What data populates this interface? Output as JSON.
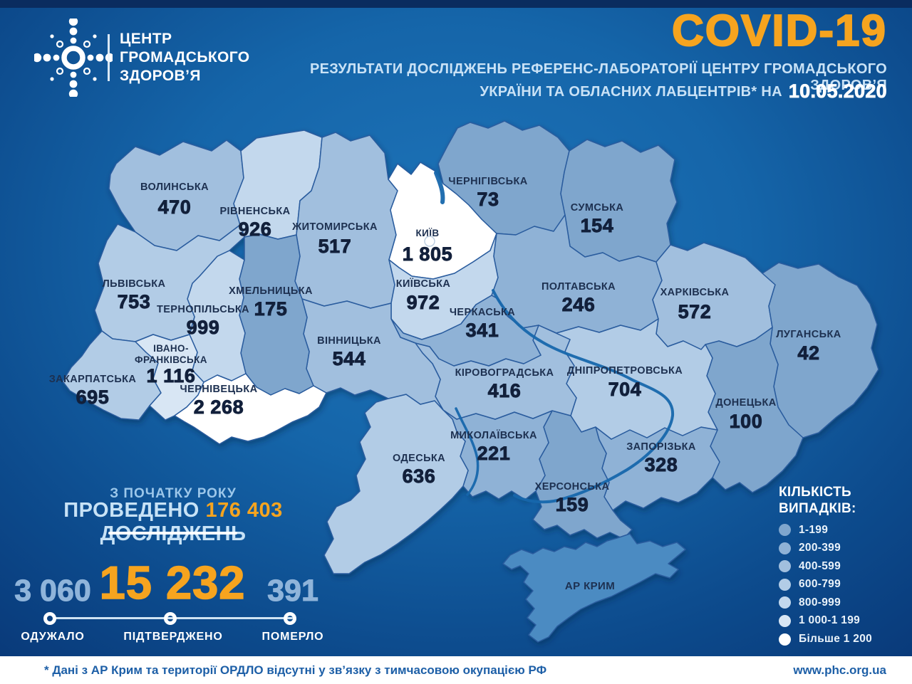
{
  "header": {
    "logo_lines": [
      "ЦЕНТР",
      "ГРОМАДСЬКОГО",
      "ЗДОРОВ’Я"
    ],
    "title": "COVID-19",
    "subtitle_line1": "РЕЗУЛЬТАТИ ДОСЛІДЖЕНЬ РЕФЕРЕНС-ЛАБОРАТОРІЇ ЦЕНТРУ ГРОМАДСЬКОГО ЗДОРОВ’Я",
    "subtitle_line2": "УКРАЇНИ ТА ОБЛАСНИХ ЛАБЦЕНТРІВ* НА",
    "date": "10.05.2020",
    "accent_color": "#F6A41F"
  },
  "map": {
    "regions": [
      {
        "key": "volynska",
        "name": "ВОЛИНСЬКА",
        "value": "470",
        "class": 2
      },
      {
        "key": "rivnenska",
        "name": "РІВНЕНСЬКА",
        "value": "926",
        "class": 4
      },
      {
        "key": "zhytomyrska",
        "name": "ЖИТОМИРСЬКА",
        "value": "517",
        "class": 2
      },
      {
        "key": "kyiv_city",
        "name": "КИЇВ",
        "value": "1 805",
        "class": 6
      },
      {
        "key": "kyivska",
        "name": "КИЇВСЬКА",
        "value": "972",
        "class": 4
      },
      {
        "key": "chernihivska",
        "name": "ЧЕРНІГІВСЬКА",
        "value": "73",
        "class": 0
      },
      {
        "key": "sumska",
        "name": "СУМСЬКА",
        "value": "154",
        "class": 0
      },
      {
        "key": "poltavska",
        "name": "ПОЛТАВСЬКА",
        "value": "246",
        "class": 1
      },
      {
        "key": "kharkivska",
        "name": "ХАРКІВСЬКА",
        "value": "572",
        "class": 2
      },
      {
        "key": "luhanska",
        "name": "ЛУГАНСЬКА",
        "value": "42",
        "class": 0
      },
      {
        "key": "donetska",
        "name": "ДОНЕЦЬКА",
        "value": "100",
        "class": 0
      },
      {
        "key": "zaporizka",
        "name": "ЗАПОРІЗЬКА",
        "value": "328",
        "class": 1
      },
      {
        "key": "dnipropetrovska",
        "name": "ДНІПРОПЕТРОВСЬКА",
        "value": "704",
        "class": 3
      },
      {
        "key": "khersonska",
        "name": "ХЕРСОНСЬКА",
        "value": "159",
        "class": 0
      },
      {
        "key": "mykolaivska",
        "name": "МИКОЛАЇВСЬКА",
        "value": "221",
        "class": 1
      },
      {
        "key": "odeska",
        "name": "ОДЕСЬКА",
        "value": "636",
        "class": 3
      },
      {
        "key": "kirovohradska",
        "name": "КІРОВОГРАДСЬКА",
        "value": "416",
        "class": 2
      },
      {
        "key": "cherkaska",
        "name": "ЧЕРКАСЬКА",
        "value": "341",
        "class": 1
      },
      {
        "key": "vinnytska",
        "name": "ВІННИЦЬКА",
        "value": "544",
        "class": 2
      },
      {
        "key": "khmelnytska",
        "name": "ХМЕЛЬНИЦЬКА",
        "value": "175",
        "class": 0
      },
      {
        "key": "ternopilska",
        "name": "ТЕРНОПІЛЬСЬКА",
        "value": "999",
        "class": 4
      },
      {
        "key": "lvivska",
        "name": "ЛЬВІВСЬКА",
        "value": "753",
        "class": 3
      },
      {
        "key": "zakarpatska",
        "name": "ЗАКАРПАТСЬКА",
        "value": "695",
        "class": 3
      },
      {
        "key": "ivano_frankivska",
        "name": "ІВАНО-ФРАНКІВСЬКА",
        "name_lines": [
          "ІВАНО-",
          "ФРАНКІВСЬКА"
        ],
        "value": "1 116",
        "class": 5
      },
      {
        "key": "chernivetska",
        "name": "ЧЕРНІВЕЦЬКА",
        "value": "2 268",
        "class": 6
      },
      {
        "key": "crimea",
        "name": "АР КРИМ",
        "value": "",
        "class": "none"
      }
    ]
  },
  "stats": {
    "since_label": "З ПОЧАТКУ РОКУ",
    "tested_prefix": "ПРОВЕДЕНО",
    "tested_value": "176 403",
    "tested_suffix": "ДОСЛІДЖЕНЬ",
    "recovered": {
      "value": "3 060",
      "label": "ОДУЖАЛО"
    },
    "confirmed": {
      "value": "15 232",
      "label": "ПІДТВЕРДЖЕНО"
    },
    "died": {
      "value": "391",
      "label": "ПОМЕРЛО"
    }
  },
  "legend": {
    "title_line1": "КІЛЬКІСТЬ",
    "title_line2": "ВИПАДКІВ:",
    "items": [
      {
        "label": "1-199",
        "color": "#7FA6CD"
      },
      {
        "label": "200-399",
        "color": "#8FB2D6"
      },
      {
        "label": "400-599",
        "color": "#A1BFDE"
      },
      {
        "label": "600-799",
        "color": "#B2CCE6"
      },
      {
        "label": "800-999",
        "color": "#C3D8ED"
      },
      {
        "label": "1 000-1 199",
        "color": "#D8E6F4"
      },
      {
        "label": "Більше 1 200",
        "color": "#FFFFFF"
      }
    ],
    "no_data_color": "#4C8BC2"
  },
  "footer": {
    "note": "* Дані з АР Крим та території ОРДЛО відсутні у зв’язку з тимчасовою окупацією РФ",
    "url": "www.phc.org.ua"
  }
}
